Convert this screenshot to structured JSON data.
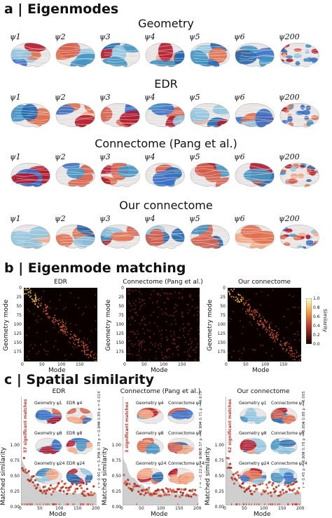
{
  "panel_a": {
    "title": "a | Eigenmodes",
    "rows": [
      {
        "title": "Geometry"
      },
      {
        "title": "EDR"
      },
      {
        "title": "Connectome (Pang et al.)"
      },
      {
        "title": "Our connectome"
      }
    ],
    "mode_labels": [
      "ψ1",
      "ψ2",
      "ψ3",
      "ψ4",
      "ψ5",
      "ψ6",
      "ψ200"
    ]
  },
  "panel_b": {
    "title": "b | Eigenmode matching",
    "heatmaps": [
      {
        "title": "EDR"
      },
      {
        "title": "Connectome (Pang et al.)"
      },
      {
        "title": "Our connectome"
      }
    ],
    "xlabel": "Mode",
    "ylabel": "Geometry mode",
    "yticks": [
      "0",
      "25",
      "50",
      "75",
      "100",
      "125",
      "150",
      "175"
    ],
    "xticks": [
      "0",
      "50",
      "100",
      "150"
    ],
    "colorbar": {
      "title": "Similarity",
      "ticks": [
        "1.0",
        "0.8",
        "0.6",
        "0.4",
        "0.2",
        "0.0"
      ]
    }
  },
  "panel_c": {
    "title": "c | Spatial similarity",
    "plots": [
      {
        "title": "EDR",
        "significant": "57 significant matches",
        "insets": [
          {
            "left": "Geometry ψ1",
            "right": "EDR ψ4",
            "stats": "r = 0.89   p = 0.014"
          },
          {
            "left": "Geometry ψ8",
            "right": "EDR ψ8",
            "stats": "r = 0.78   p = 0.040"
          },
          {
            "left": "Geometry ψ24",
            "right": "EDR ψ24",
            "stats": "r = 0.40   p = 0.355"
          }
        ]
      },
      {
        "title": "Connectome (Pang et al.)",
        "significant": "3 significant matches",
        "insets": [
          {
            "left": "Geometry ψ4",
            "right": "Connectome ψ4",
            "stats": "r = 0.71   p = 0.679"
          },
          {
            "left": "Geometry ψ8",
            "right": "Connectome ψ8",
            "stats": "r = 0.37   p = 0.994"
          },
          {
            "left": "Geometry ψ24",
            "right": "Connectome ψ24",
            "stats": "r = −0.22   p = 0.837"
          }
        ]
      },
      {
        "title": "Our connectome",
        "significant": "62 significant matches",
        "insets": [
          {
            "left": "Geometry ψ1",
            "right": "Connectome ψ3",
            "stats": "r = 0.88   p = 0.005"
          },
          {
            "left": "Geometry ψ8",
            "right": "Connectome ψ8",
            "stats": "r = 0.78   p = 0.016"
          },
          {
            "left": "Geometry ψ24",
            "right": "Connectome ψ24",
            "stats": "r = 0.45   p = 0.003"
          }
        ]
      }
    ],
    "xlabel": "Mode",
    "ylabel": "Matched similarity",
    "yticks": [
      "1.00",
      "0.75",
      "0.50",
      "0.25",
      "0.00"
    ],
    "xticks": [
      "0",
      "50",
      "100",
      "150",
      "200"
    ]
  },
  "colors": {
    "red": "#c0392b",
    "blue": "#2e5fb8",
    "grey": "#bbbbbb",
    "heat_bg": "#0a0000"
  }
}
